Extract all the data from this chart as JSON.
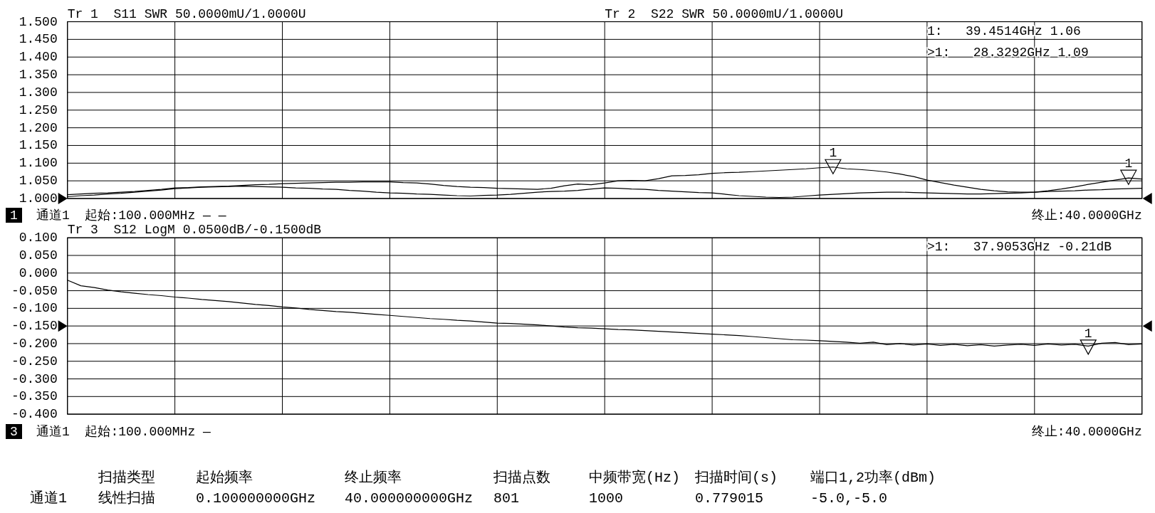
{
  "chart_data": [
    {
      "type": "line",
      "categories": [
        null,
        null,
        null,
        null,
        null,
        null,
        null,
        null,
        null,
        null,
        null,
        null,
        null,
        null,
        null,
        null,
        null,
        null,
        null,
        null,
        null,
        null,
        null,
        null,
        null,
        null,
        null,
        null,
        null,
        null,
        null,
        null,
        null,
        null,
        null,
        null,
        null,
        null,
        null,
        null,
        null,
        null,
        null,
        null,
        null,
        null,
        null,
        null,
        null,
        null,
        null,
        null,
        null,
        null,
        null,
        null,
        null,
        null,
        null,
        null,
        null,
        null,
        null,
        null,
        null,
        null,
        null,
        null,
        null,
        null,
        null,
        null,
        null,
        null,
        null,
        null,
        null,
        null,
        null,
        null,
        null
      ],
      "ylim": [
        1.0,
        1.5
      ],
      "yticks": [
        {
          "value": 1.0,
          "label": "1.000"
        },
        {
          "value": 1.05,
          "label": "1.050"
        },
        {
          "value": 1.1,
          "label": "1.100"
        },
        {
          "value": 1.15,
          "label": "1.150"
        },
        {
          "value": 1.2,
          "label": "1.200"
        },
        {
          "value": 1.25,
          "label": "1.250"
        },
        {
          "value": 1.3,
          "label": "1.300"
        },
        {
          "value": 1.35,
          "label": "1.350"
        },
        {
          "value": 1.4,
          "label": "1.400"
        },
        {
          "value": 1.45,
          "label": "1.450"
        },
        {
          "value": 1.5,
          "label": "1.500"
        }
      ],
      "tick_labels": "y",
      "grid": true,
      "series": [
        {
          "color": "#000000",
          "values": [
            1.005,
            1.008,
            1.01,
            1.013,
            1.015,
            1.018,
            1.021,
            1.024,
            1.028,
            1.03,
            1.032,
            1.033,
            1.034,
            1.035,
            1.034,
            1.033,
            1.032,
            1.03,
            1.029,
            1.027,
            1.026,
            1.023,
            1.021,
            1.018,
            1.016,
            1.015,
            1.013,
            1.012,
            1.01,
            1.008,
            1.007,
            1.009,
            1.01,
            1.012,
            1.015,
            1.018,
            1.02,
            1.021,
            1.023,
            1.027,
            1.03,
            1.029,
            1.027,
            1.026,
            1.023,
            1.021,
            1.019,
            1.017,
            1.016,
            1.012,
            1.008,
            1.006,
            1.004,
            1.003,
            1.004,
            1.007,
            1.01,
            1.012,
            1.014,
            1.016,
            1.017,
            1.018,
            1.018,
            1.017,
            1.016,
            1.015,
            1.014,
            1.013,
            1.013,
            1.014,
            1.015,
            1.016,
            1.018,
            1.022,
            1.027,
            1.033,
            1.04,
            1.046,
            1.052,
            1.058,
            1.055
          ]
        },
        {
          "color": "#000000",
          "values": [
            1.011,
            1.013,
            1.015,
            1.016,
            1.018,
            1.02,
            1.023,
            1.026,
            1.03,
            1.031,
            1.033,
            1.034,
            1.035,
            1.037,
            1.039,
            1.04,
            1.042,
            1.043,
            1.044,
            1.045,
            1.046,
            1.046,
            1.047,
            1.047,
            1.047,
            1.045,
            1.044,
            1.041,
            1.037,
            1.034,
            1.032,
            1.031,
            1.029,
            1.028,
            1.027,
            1.026,
            1.029,
            1.036,
            1.041,
            1.039,
            1.044,
            1.05,
            1.051,
            1.05,
            1.056,
            1.064,
            1.065,
            1.067,
            1.071,
            1.073,
            1.074,
            1.076,
            1.078,
            1.08,
            1.082,
            1.084,
            1.087,
            1.089,
            1.084,
            1.082,
            1.079,
            1.075,
            1.069,
            1.062,
            1.052,
            1.045,
            1.038,
            1.032,
            1.026,
            1.022,
            1.019,
            1.018,
            1.018,
            1.02,
            1.021,
            1.022,
            1.024,
            1.025,
            1.027,
            1.028,
            1.029
          ]
        },
        {
          "type": "scatter",
          "name": "1",
          "marker": "triangle",
          "color": "#000000",
          "values": [
            null,
            null,
            null,
            null,
            null,
            null,
            null,
            null,
            null,
            null,
            null,
            null,
            null,
            null,
            null,
            null,
            null,
            null,
            null,
            null,
            null,
            null,
            null,
            null,
            null,
            null,
            null,
            null,
            null,
            null,
            null,
            null,
            null,
            null,
            null,
            null,
            null,
            null,
            null,
            null,
            null,
            null,
            null,
            null,
            null,
            null,
            null,
            null,
            null,
            null,
            null,
            null,
            null,
            null,
            null,
            null,
            null,
            1.09,
            null,
            null,
            null,
            null,
            null,
            null,
            null,
            null,
            null,
            null,
            null,
            null,
            null,
            null,
            null,
            null,
            null,
            null,
            null,
            null,
            null,
            1.06,
            null
          ]
        }
      ],
      "annotations": [
        "Tr 1  S11 SWR 50.0000mU/1.0000U",
        "Tr 2  S22 SWR 50.0000mU/1.0000U",
        "1",
        "通道1  起始:100.000MHz — —",
        "终止:40.0000GHz",
        "1:   39.4514GHz 1.06",
        ">1:   28.3292GHz 1.09"
      ]
    },
    {
      "type": "line",
      "categories": [
        null,
        null,
        null,
        null,
        null,
        null,
        null,
        null,
        null,
        null,
        null,
        null,
        null,
        null,
        null,
        null,
        null,
        null,
        null,
        null,
        null,
        null,
        null,
        null,
        null,
        null,
        null,
        null,
        null,
        null,
        null,
        null,
        null,
        null,
        null,
        null,
        null,
        null,
        null,
        null,
        null,
        null,
        null,
        null,
        null,
        null,
        null,
        null,
        null,
        null,
        null,
        null,
        null,
        null,
        null,
        null,
        null,
        null,
        null,
        null,
        null,
        null,
        null,
        null,
        null,
        null,
        null,
        null,
        null,
        null,
        null,
        null,
        null,
        null,
        null,
        null,
        null,
        null,
        null,
        null,
        null
      ],
      "ylim": [
        -0.4,
        0.1
      ],
      "yticks": [
        {
          "value": -0.4,
          "label": "-0.400"
        },
        {
          "value": -0.35,
          "label": "-0.350"
        },
        {
          "value": -0.3,
          "label": "-0.300"
        },
        {
          "value": -0.25,
          "label": "-0.250"
        },
        {
          "value": -0.2,
          "label": "-0.200"
        },
        {
          "value": -0.15,
          "label": "-0.150"
        },
        {
          "value": -0.1,
          "label": "-0.100"
        },
        {
          "value": -0.05,
          "label": "-0.050"
        },
        {
          "value": 0,
          "label": "0.000"
        },
        {
          "value": 0.05,
          "label": "0.050"
        },
        {
          "value": 0.1,
          "label": "0.100"
        }
      ],
      "tick_labels": "y",
      "grid": true,
      "series": [
        {
          "color": "#000000",
          "values": [
            -0.02,
            -0.036,
            -0.041,
            -0.048,
            -0.053,
            -0.057,
            -0.061,
            -0.064,
            -0.068,
            -0.071,
            -0.075,
            -0.078,
            -0.081,
            -0.085,
            -0.089,
            -0.092,
            -0.096,
            -0.099,
            -0.103,
            -0.106,
            -0.109,
            -0.111,
            -0.114,
            -0.117,
            -0.12,
            -0.123,
            -0.126,
            -0.129,
            -0.131,
            -0.134,
            -0.136,
            -0.139,
            -0.142,
            -0.143,
            -0.145,
            -0.147,
            -0.15,
            -0.153,
            -0.155,
            -0.156,
            -0.158,
            -0.16,
            -0.161,
            -0.163,
            -0.165,
            -0.167,
            -0.169,
            -0.171,
            -0.173,
            -0.175,
            -0.177,
            -0.18,
            -0.183,
            -0.186,
            -0.189,
            -0.19,
            -0.192,
            -0.194,
            -0.196,
            -0.199,
            -0.196,
            -0.203,
            -0.2,
            -0.204,
            -0.201,
            -0.205,
            -0.202,
            -0.206,
            -0.203,
            -0.207,
            -0.204,
            -0.202,
            -0.205,
            -0.201,
            -0.204,
            -0.202,
            -0.207,
            -0.199,
            -0.197,
            -0.203,
            -0.201
          ]
        },
        {
          "type": "scatter",
          "name": "1",
          "marker": "triangle",
          "color": "#000000",
          "values": [
            null,
            null,
            null,
            null,
            null,
            null,
            null,
            null,
            null,
            null,
            null,
            null,
            null,
            null,
            null,
            null,
            null,
            null,
            null,
            null,
            null,
            null,
            null,
            null,
            null,
            null,
            null,
            null,
            null,
            null,
            null,
            null,
            null,
            null,
            null,
            null,
            null,
            null,
            null,
            null,
            null,
            null,
            null,
            null,
            null,
            null,
            null,
            null,
            null,
            null,
            null,
            null,
            null,
            null,
            null,
            null,
            null,
            null,
            null,
            null,
            null,
            null,
            null,
            null,
            null,
            null,
            null,
            null,
            null,
            null,
            null,
            null,
            null,
            null,
            null,
            null,
            -0.21,
            null,
            null,
            null,
            null
          ]
        }
      ],
      "annotations": [
        "Tr 3  S12 LogM 0.0500dB/-0.1500dB",
        "3",
        "通道1  起始:100.000MHz —",
        "终止:40.0000GHz",
        ">1:   37.9053GHz -0.21dB"
      ]
    },
    {
      "type": "other",
      "annotations": [
        "扫描类型",
        "起始频率",
        "终止频率",
        "扫描点数",
        "中频带宽(Hz)",
        "扫描时间(s)",
        "端口1,2功率(dBm)",
        "通道1",
        "线性扫描",
        "0.100000000GHz",
        "40.000000000GHz",
        "801",
        "1000",
        "0.779015",
        "-5.0,-5.0"
      ]
    }
  ]
}
